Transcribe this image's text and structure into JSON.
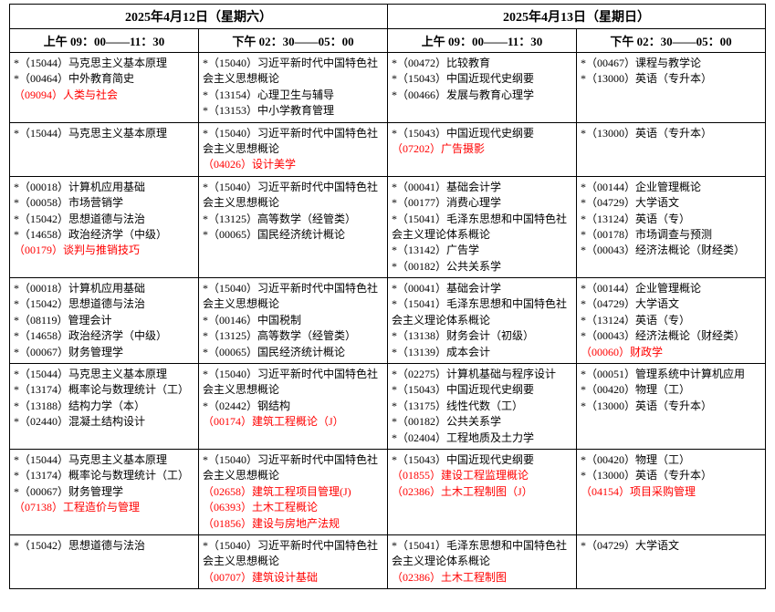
{
  "text_color_normal": "#000000",
  "text_color_highlight": "#ff0000",
  "border_color": "#000000",
  "background_color": "#ffffff",
  "font_family": "SimSun",
  "days": [
    {
      "label": "2025年4月12日（星期六）"
    },
    {
      "label": "2025年4月13日（星期日）"
    }
  ],
  "sessions": [
    {
      "label": "上午 09：00——11：30"
    },
    {
      "label": "下午 02：30——05：00"
    },
    {
      "label": "上午 09：00——11：30"
    },
    {
      "label": "下午 02：30——05：00"
    }
  ],
  "rows": [
    {
      "cells": [
        [
          {
            "text": "*（15044）马克思主义基本原理",
            "red": false
          },
          {
            "text": "*（00464）中外教育简史",
            "red": false
          },
          {
            "text": "（09094）人类与社会",
            "red": true
          }
        ],
        [
          {
            "text": "*（15040）习近平新时代中国特色社会主义思想概论",
            "red": false
          },
          {
            "text": "*（13154）心理卫生与辅导",
            "red": false
          },
          {
            "text": "*（13153）中小学教育管理",
            "red": false
          }
        ],
        [
          {
            "text": "*（00472）比较教育",
            "red": false
          },
          {
            "text": "*（15043）中国近现代史纲要",
            "red": false
          },
          {
            "text": "*（00466）发展与教育心理学",
            "red": false
          }
        ],
        [
          {
            "text": "*（00467）课程与教学论",
            "red": false
          },
          {
            "text": "*（13000）英语（专升本）",
            "red": false
          }
        ]
      ]
    },
    {
      "cells": [
        [
          {
            "text": "*（15044）马克思主义基本原理",
            "red": false
          }
        ],
        [
          {
            "text": "*（15040）习近平新时代中国特色社会主义思想概论",
            "red": false
          },
          {
            "text": "（04026）设计美学",
            "red": true
          }
        ],
        [
          {
            "text": "*（15043）中国近现代史纲要",
            "red": false
          },
          {
            "text": "（07202）广告摄影",
            "red": true
          }
        ],
        [
          {
            "text": "*（13000）英语（专升本）",
            "red": false
          }
        ]
      ]
    },
    {
      "cells": [
        [
          {
            "text": "*（00018）计算机应用基础",
            "red": false
          },
          {
            "text": "*（00058）市场营销学",
            "red": false
          },
          {
            "text": "*（15042）思想道德与法治",
            "red": false
          },
          {
            "text": "*（14658）政治经济学（中级）",
            "red": false
          },
          {
            "text": "（00179）谈判与推销技巧",
            "red": true
          }
        ],
        [
          {
            "text": "*（15040）习近平新时代中国特色社会主义思想概论",
            "red": false
          },
          {
            "text": "*（13125）高等数学（经管类）",
            "red": false
          },
          {
            "text": "*（00065）国民经济统计概论",
            "red": false
          }
        ],
        [
          {
            "text": "*（00041）基础会计学",
            "red": false
          },
          {
            "text": "*（00177）消费心理学",
            "red": false
          },
          {
            "text": "*（15041）毛泽东思想和中国特色社会主义理论体系概论",
            "red": false
          },
          {
            "text": "*（13142）广告学",
            "red": false
          },
          {
            "text": "*（00182）公共关系学",
            "red": false
          }
        ],
        [
          {
            "text": "*（00144）企业管理概论",
            "red": false
          },
          {
            "text": "*（04729）大学语文",
            "red": false
          },
          {
            "text": "*（13124）英语（专）",
            "red": false
          },
          {
            "text": "*（00178）市场调查与预测",
            "red": false
          },
          {
            "text": "*（00043）经济法概论（财经类）",
            "red": false
          }
        ]
      ]
    },
    {
      "cells": [
        [
          {
            "text": "*（00018）计算机应用基础",
            "red": false
          },
          {
            "text": "*（15042）思想道德与法治",
            "red": false
          },
          {
            "text": "*（08119）管理会计",
            "red": false
          },
          {
            "text": "*（14658）政治经济学（中级）",
            "red": false
          },
          {
            "text": "*（00067）财务管理学",
            "red": false
          }
        ],
        [
          {
            "text": "*（15040）习近平新时代中国特色社会主义思想概论",
            "red": false
          },
          {
            "text": "*（00146）中国税制",
            "red": false
          },
          {
            "text": "*（13125）高等数学（经管类）",
            "red": false
          },
          {
            "text": "*（00065）国民经济统计概论",
            "red": false
          }
        ],
        [
          {
            "text": "*（00041）基础会计学",
            "red": false
          },
          {
            "text": "*（15041）毛泽东思想和中国特色社会主义理论体系概论",
            "red": false
          },
          {
            "text": "*（13138）财务会计（初级）",
            "red": false
          },
          {
            "text": "*（13139）成本会计",
            "red": false
          }
        ],
        [
          {
            "text": "*（00144）企业管理概论",
            "red": false
          },
          {
            "text": "*（04729）大学语文",
            "red": false
          },
          {
            "text": "*（13124）英语（专）",
            "red": false
          },
          {
            "text": "*（00043）经济法概论（财经类）",
            "red": false
          },
          {
            "text": "（00060）财政学",
            "red": true
          }
        ]
      ]
    },
    {
      "cells": [
        [
          {
            "text": "*（15044）马克思主义基本原理",
            "red": false
          },
          {
            "text": "*（13174）概率论与数理统计（工）",
            "red": false
          },
          {
            "text": "*（13188）结构力学（本）",
            "red": false
          },
          {
            "text": "*（02440）混凝土结构设计",
            "red": false
          }
        ],
        [
          {
            "text": "*（15040）习近平新时代中国特色社会主义思想概论",
            "red": false
          },
          {
            "text": "*（02442）钢结构",
            "red": false
          },
          {
            "text": "（00174）建筑工程概论（J）",
            "red": true
          }
        ],
        [
          {
            "text": "*（02275）计算机基础与程序设计",
            "red": false
          },
          {
            "text": "*（15043）中国近现代史纲要",
            "red": false
          },
          {
            "text": "*（13175）线性代数（工）",
            "red": false
          },
          {
            "text": "*（00182）公共关系学",
            "red": false
          },
          {
            "text": "*（02404）工程地质及土力学",
            "red": false
          }
        ],
        [
          {
            "text": "*（00051）管理系统中计算机应用",
            "red": false
          },
          {
            "text": "*（00420）物理（工）",
            "red": false
          },
          {
            "text": "*（13000）英语（专升本）",
            "red": false
          }
        ]
      ]
    },
    {
      "cells": [
        [
          {
            "text": "*（15044）马克思主义基本原理",
            "red": false
          },
          {
            "text": "*（13174）概率论与数理统计（工）",
            "red": false
          },
          {
            "text": "*（00067）财务管理学",
            "red": false
          },
          {
            "text": "（07138）工程造价与管理",
            "red": true
          }
        ],
        [
          {
            "text": "*（15040）习近平新时代中国特色社会主义思想概论",
            "red": false
          },
          {
            "text": "（02658）建筑工程项目管理(J)",
            "red": true
          },
          {
            "text": "（06393）土木工程概论",
            "red": true
          },
          {
            "text": "（01856）建设与房地产法规",
            "red": true
          }
        ],
        [
          {
            "text": "*（15043）中国近现代史纲要",
            "red": false
          },
          {
            "text": "（01855）建设工程监理概论",
            "red": true
          },
          {
            "text": "（02386）土木工程制图（J）",
            "red": true
          }
        ],
        [
          {
            "text": "*（00420）物理（工）",
            "red": false
          },
          {
            "text": "*（13000）英语（专升本）",
            "red": false
          },
          {
            "text": "（04154）项目采购管理",
            "red": true
          }
        ]
      ]
    },
    {
      "cells": [
        [
          {
            "text": "*（15042）思想道德与法治",
            "red": false
          }
        ],
        [
          {
            "text": "*（15040）习近平新时代中国特色社会主义思想概论",
            "red": false
          },
          {
            "text": "（00707）建筑设计基础",
            "red": true
          }
        ],
        [
          {
            "text": "*（15041）毛泽东思想和中国特色社会主义理论体系概论",
            "red": false
          },
          {
            "text": "（02386）土木工程制图",
            "red": true
          }
        ],
        [
          {
            "text": "*（04729）大学语文",
            "red": false
          }
        ]
      ]
    }
  ]
}
